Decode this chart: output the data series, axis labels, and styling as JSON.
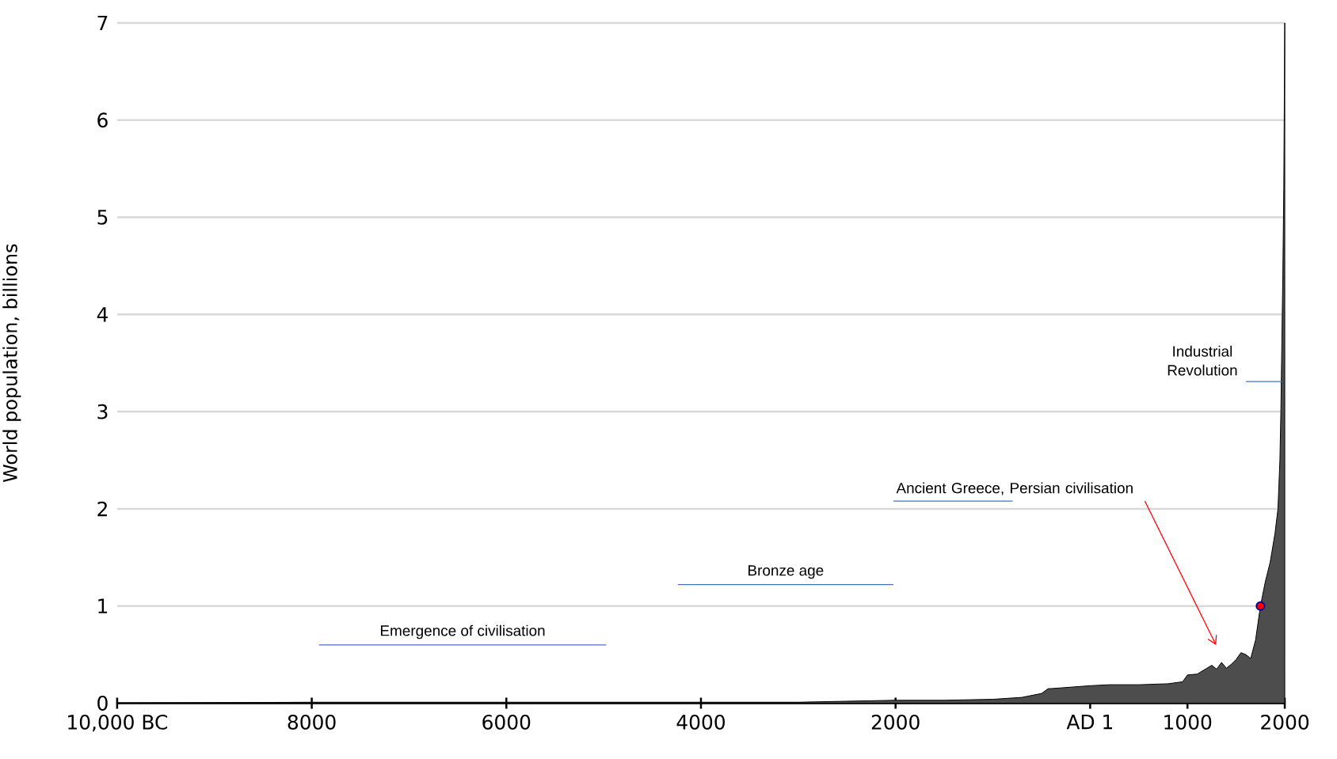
{
  "chart_data": {
    "type": "area",
    "ylabel": "World population, billions",
    "xlim": [
      -10000,
      2000
    ],
    "ylim": [
      0,
      7
    ],
    "xticks": [
      {
        "value": -10000,
        "label": "10,000 BC"
      },
      {
        "value": -8000,
        "label": "8000"
      },
      {
        "value": -6000,
        "label": "6000"
      },
      {
        "value": -4000,
        "label": "4000"
      },
      {
        "value": -2000,
        "label": "2000"
      },
      {
        "value": 0,
        "label": "AD 1"
      },
      1000,
      2000
    ],
    "yticks": [
      0,
      1,
      2,
      3,
      4,
      5,
      6,
      7
    ],
    "grid": "y",
    "series": [
      {
        "color": "#4d4d4d",
        "x": [
          -10000,
          -8000,
          -6000,
          -5000,
          -4000,
          -3000,
          -2000,
          -1500,
          -1000,
          -700,
          -500,
          -430,
          -400,
          0,
          200,
          500,
          800,
          950,
          1000,
          1100,
          1200,
          1250,
          1300,
          1350,
          1400,
          1450,
          1500,
          1550,
          1600,
          1650,
          1700,
          1750,
          1800,
          1850,
          1900,
          1930,
          1950,
          1960,
          1970,
          1980,
          1990,
          2000
        ],
        "values": [
          0,
          0.01,
          0.01,
          0.01,
          0.01,
          0.01,
          0.03,
          0.03,
          0.04,
          0.06,
          0.1,
          0.15,
          0.15,
          0.18,
          0.19,
          0.19,
          0.2,
          0.22,
          0.29,
          0.3,
          0.36,
          0.39,
          0.35,
          0.42,
          0.36,
          0.4,
          0.45,
          0.52,
          0.5,
          0.46,
          0.65,
          1.0,
          1.25,
          1.45,
          1.75,
          2.0,
          2.5,
          3.0,
          3.7,
          4.4,
          5.3,
          7.0
        ]
      },
      {
        "type": "line",
        "color": "#4472c4",
        "x": [
          -7925,
          -4974
        ],
        "values": [
          0.6,
          0.6
        ]
      },
      {
        "type": "line",
        "color": "#4472c4",
        "x": [
          -4238,
          -2022
        ],
        "values": [
          1.22,
          1.22
        ]
      },
      {
        "type": "line",
        "color": "#4472c4",
        "x": [
          -2022,
          -797
        ],
        "values": [
          2.08,
          2.08
        ]
      },
      {
        "type": "line",
        "color": "#4472c4",
        "x": [
          1600,
          1970
        ],
        "values": [
          3.31,
          3.31
        ]
      },
      {
        "type": "scatter",
        "color": "#ff0000",
        "x": [
          1750
        ],
        "values": [
          1.0
        ]
      }
    ],
    "annotations": [
      "Emergence of civilisation",
      "Bronze age",
      "Ancient Greece, Persian civilisation",
      "Industrial Revolution"
    ]
  }
}
